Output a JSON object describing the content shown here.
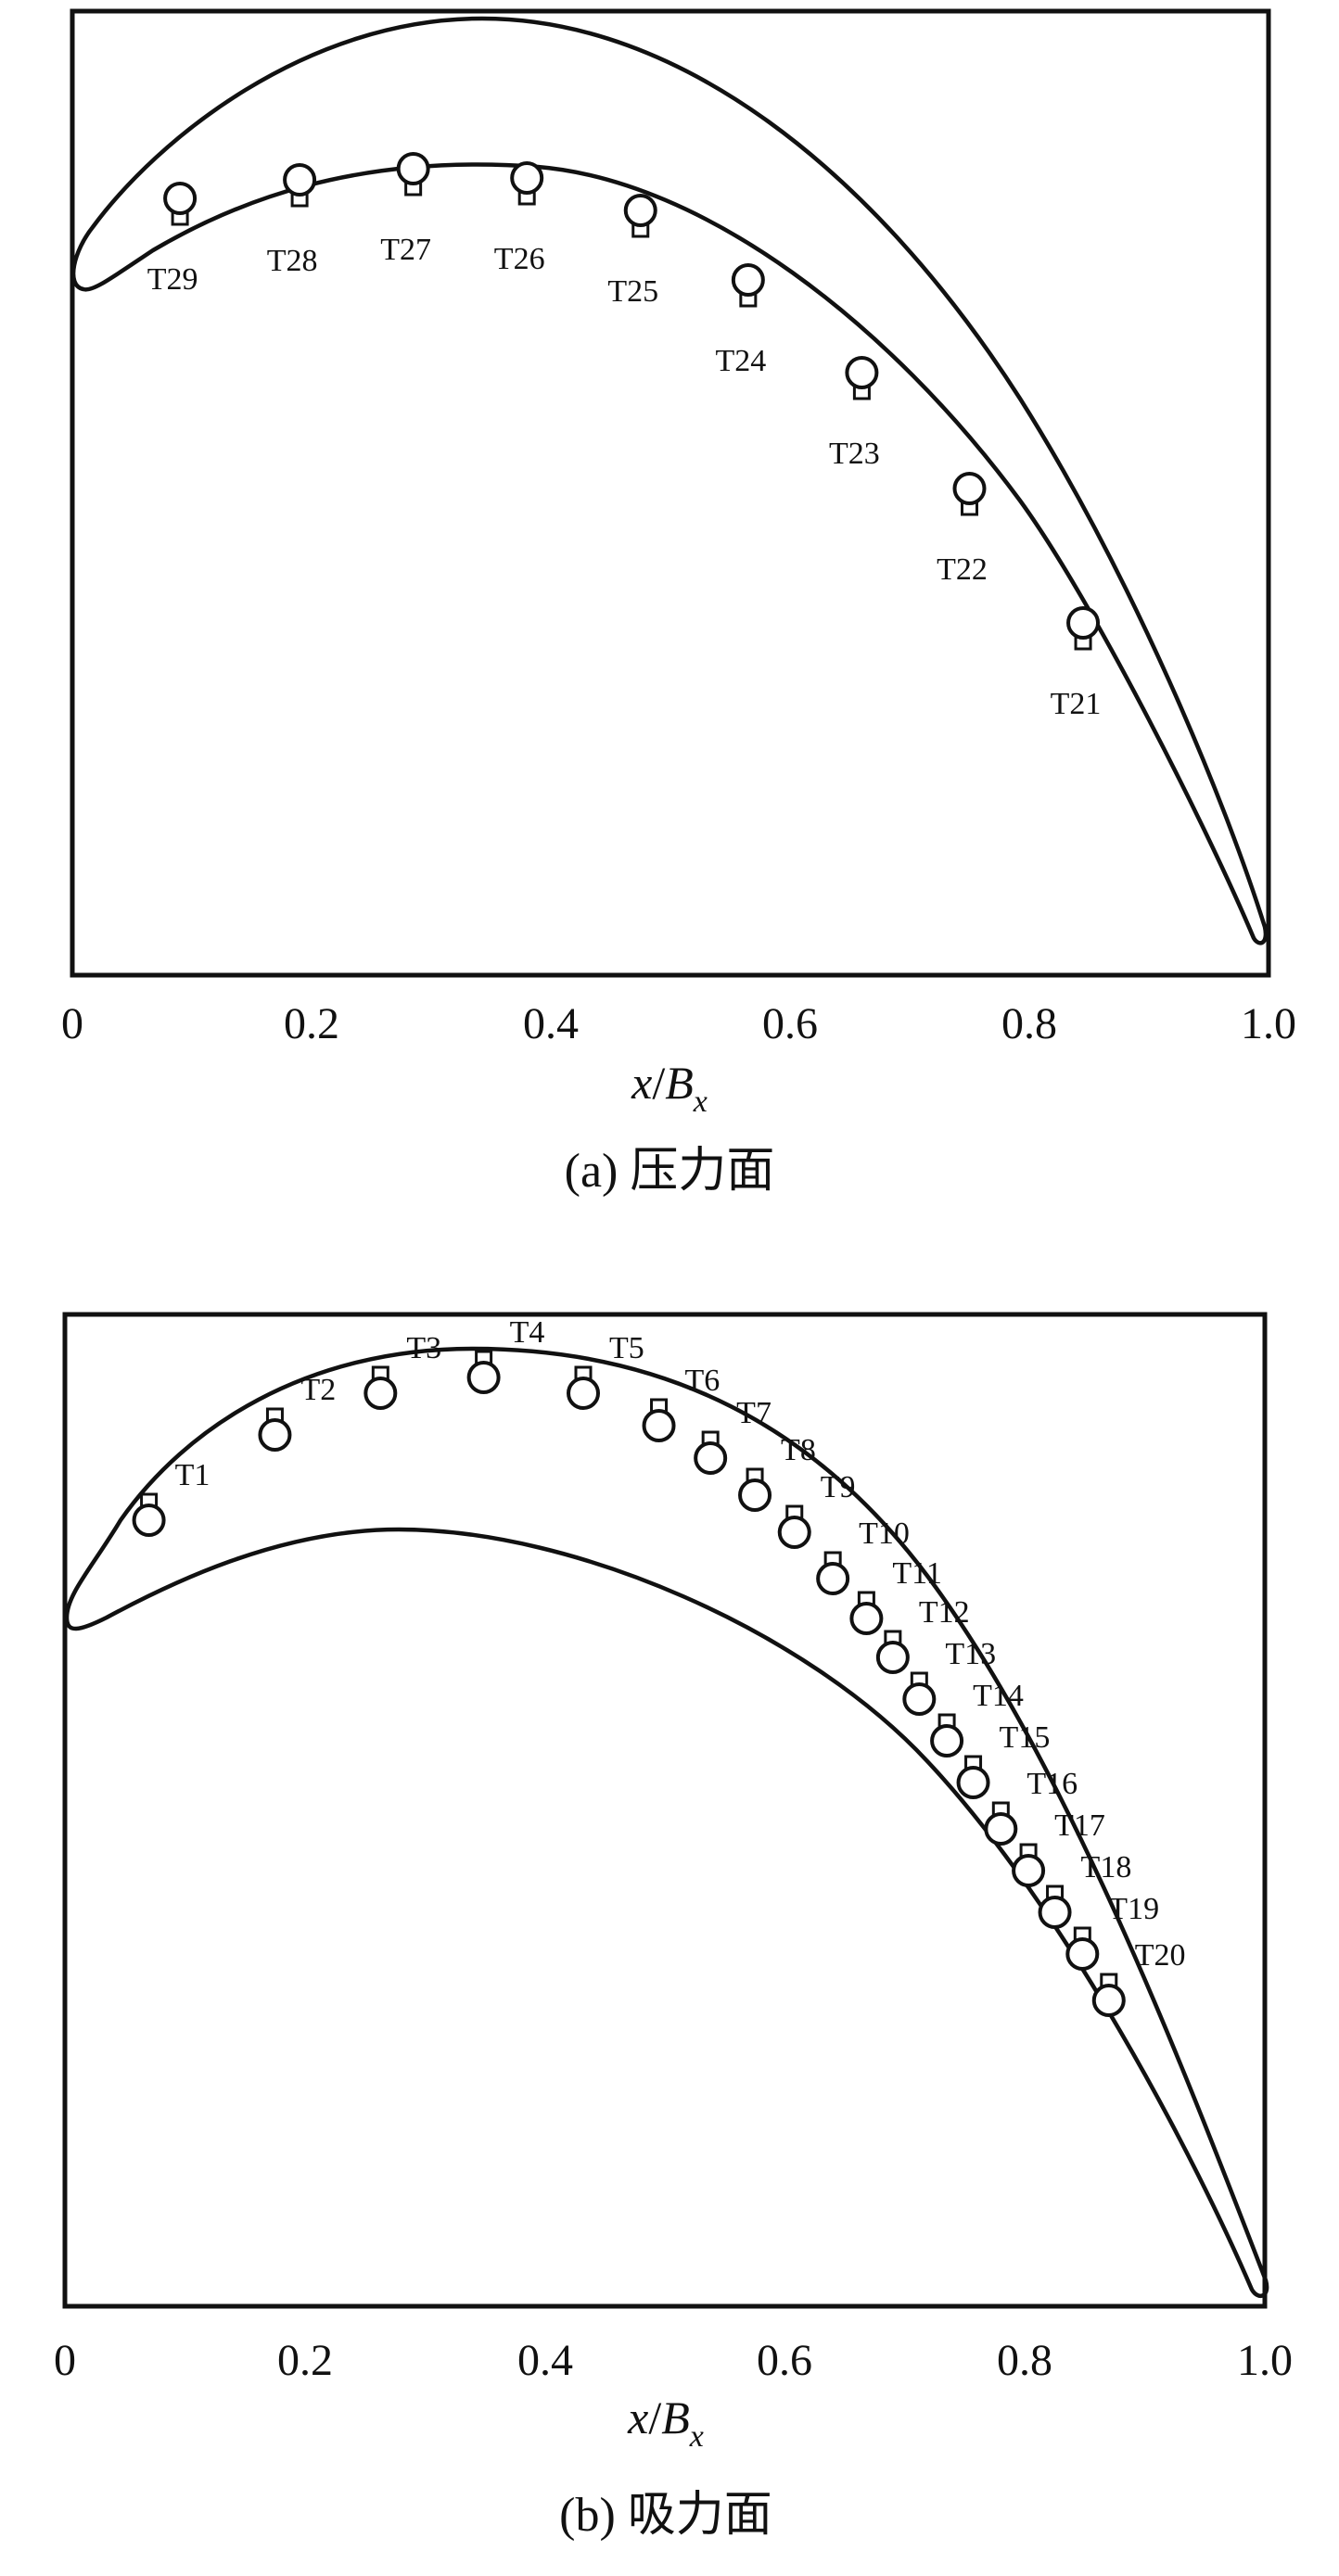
{
  "panels": [
    {
      "id": "a",
      "caption": "(a) 压力面",
      "xlabel": {
        "var": "x",
        "slash": "/",
        "base": "B",
        "sub": "x"
      },
      "xlim": [
        0,
        1.0
      ],
      "ticks": [
        "0",
        "0.2",
        "0.4",
        "0.6",
        "0.8",
        "1.0"
      ],
      "probes": [
        {
          "label": "T29",
          "x": 0.09
        },
        {
          "label": "T28",
          "x": 0.19
        },
        {
          "label": "T27",
          "x": 0.285
        },
        {
          "label": "T26",
          "x": 0.38
        },
        {
          "label": "T25",
          "x": 0.475
        },
        {
          "label": "T24",
          "x": 0.565
        },
        {
          "label": "T23",
          "x": 0.66
        },
        {
          "label": "T22",
          "x": 0.75
        },
        {
          "label": "T21",
          "x": 0.845
        }
      ]
    },
    {
      "id": "b",
      "caption": "(b) 吸力面",
      "xlabel": {
        "var": "x",
        "slash": "/",
        "base": "B",
        "sub": "x"
      },
      "xlim": [
        0,
        1.0
      ],
      "ticks": [
        "0",
        "0.2",
        "0.4",
        "0.6",
        "0.8",
        "1.0"
      ],
      "probes": [
        {
          "label": "T1",
          "x": 0.07
        },
        {
          "label": "T2",
          "x": 0.175
        },
        {
          "label": "T3",
          "x": 0.263
        },
        {
          "label": "T4",
          "x": 0.349
        },
        {
          "label": "T5",
          "x": 0.432
        },
        {
          "label": "T6",
          "x": 0.495
        },
        {
          "label": "T7",
          "x": 0.538
        },
        {
          "label": "T8",
          "x": 0.575
        },
        {
          "label": "T9",
          "x": 0.608
        },
        {
          "label": "T10",
          "x": 0.64
        },
        {
          "label": "T11",
          "x": 0.668
        },
        {
          "label": "T12",
          "x": 0.69
        },
        {
          "label": "T13",
          "x": 0.712
        },
        {
          "label": "T14",
          "x": 0.735
        },
        {
          "label": "T15",
          "x": 0.757
        },
        {
          "label": "T16",
          "x": 0.78
        },
        {
          "label": "T17",
          "x": 0.803
        },
        {
          "label": "T18",
          "x": 0.825
        },
        {
          "label": "T19",
          "x": 0.848
        },
        {
          "label": "T20",
          "x": 0.87
        }
      ]
    }
  ]
}
